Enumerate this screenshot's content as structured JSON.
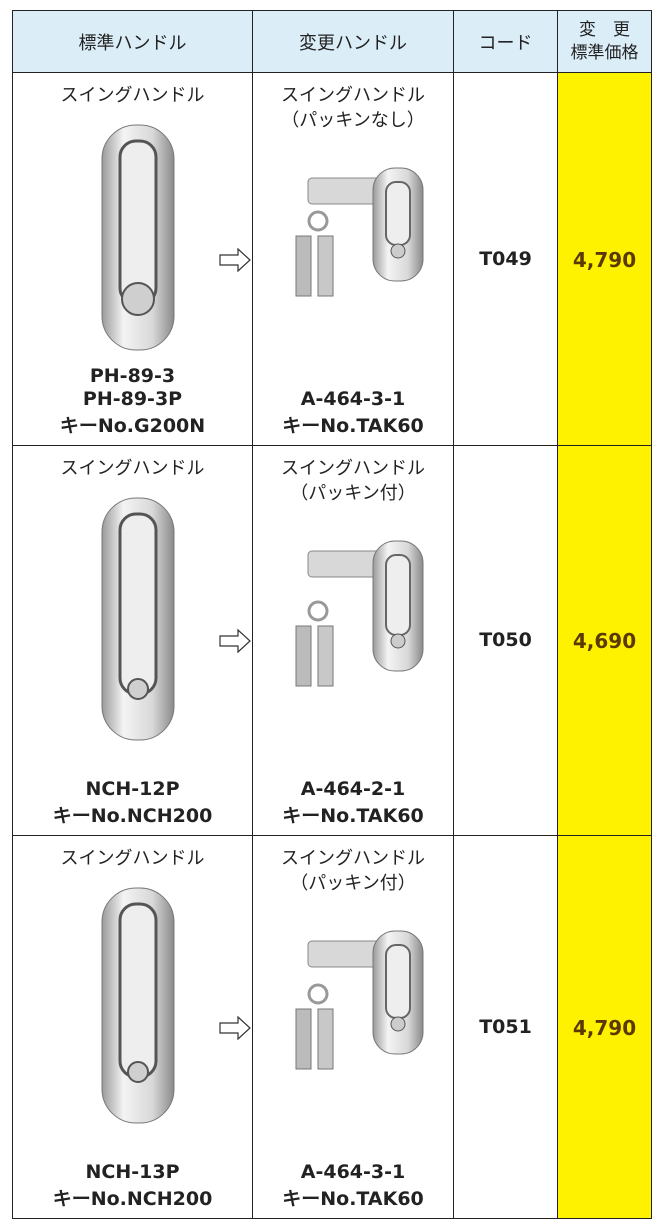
{
  "header": {
    "standard": "標準ハンドル",
    "changed": "変更ハンドル",
    "code": "コード",
    "price_lines": [
      "変　更",
      "標準価格"
    ]
  },
  "rows": [
    {
      "standard_type": "スイングハンドル",
      "standard_models": [
        "PH-89-3",
        "PH-89-3P",
        "キーNo.G200N"
      ],
      "changed_type_lines": [
        "スイングハンドル",
        "（パッキンなし）"
      ],
      "changed_models": [
        "A-464-3-1",
        "キーNo.TAK60"
      ],
      "code": "T049",
      "price": "4,790"
    },
    {
      "standard_type": "スイングハンドル",
      "standard_models": [
        "NCH-12P",
        "キーNo.NCH200"
      ],
      "changed_type_lines": [
        "スイングハンドル",
        "（パッキン付）"
      ],
      "changed_models": [
        "A-464-2-1",
        "キーNo.TAK60"
      ],
      "code": "T050",
      "price": "4,690"
    },
    {
      "standard_type": "スイングハンドル",
      "standard_models": [
        "NCH-13P",
        "キーNo.NCH200"
      ],
      "changed_type_lines": [
        "スイングハンドル",
        "（パッキン付）"
      ],
      "changed_models": [
        "A-464-3-1",
        "キーNo.TAK60"
      ],
      "code": "T051",
      "price": "4,790"
    }
  ]
}
